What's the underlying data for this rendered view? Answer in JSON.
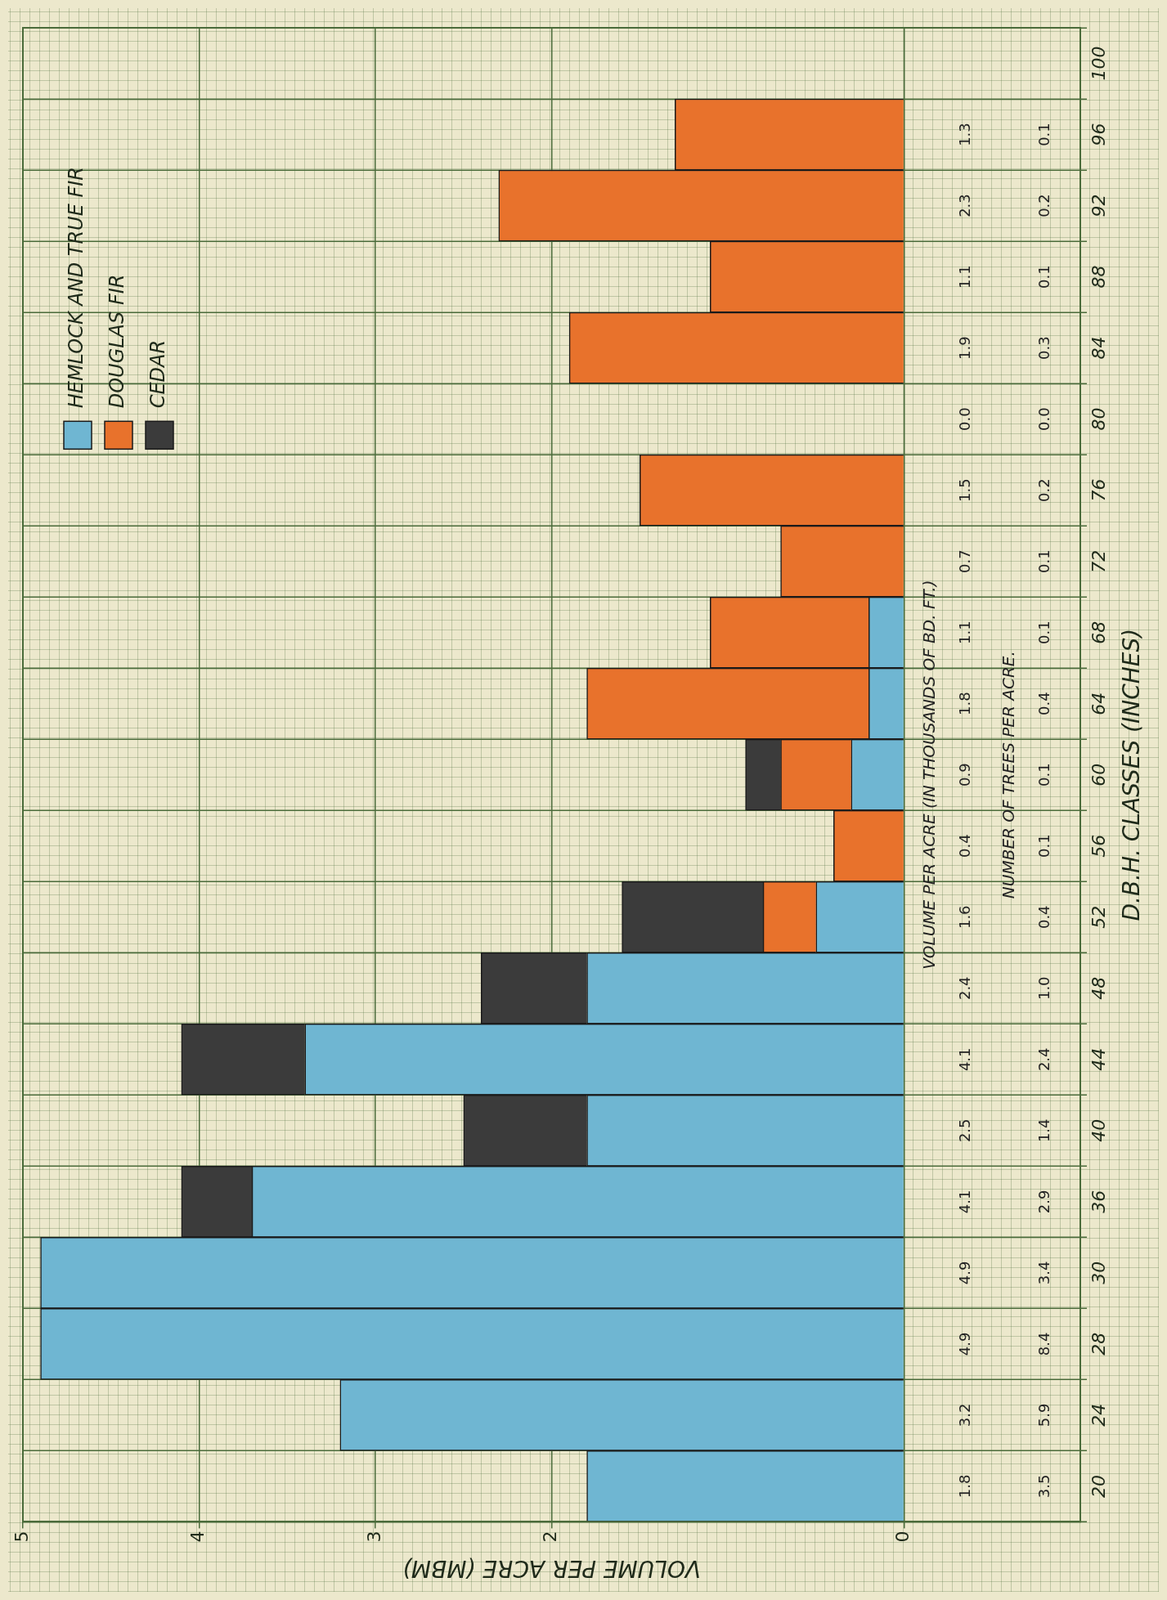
{
  "chart_data": {
    "type": "bar",
    "x_label": "D.B.H. CLASSES (INCHES)",
    "y_label": "VOLUME PER ACRE (MBM)",
    "categories": [
      20,
      24,
      28,
      30,
      36,
      40,
      44,
      48,
      52,
      56,
      60,
      64,
      68,
      72,
      76,
      80,
      84,
      88,
      92,
      96,
      100
    ],
    "series": [
      {
        "name": "HEMLOCK AND TRUE FIR",
        "color": "#6fb6d2",
        "values": [
          1.8,
          3.2,
          4.9,
          4.9,
          3.7,
          1.8,
          3.4,
          1.8,
          0.5,
          null,
          0.3,
          0.2,
          0.2,
          null,
          null,
          null,
          null,
          null,
          null,
          null,
          null
        ]
      },
      {
        "name": "DOUGLAS FIR",
        "color": "#e8722c",
        "values": [
          null,
          null,
          null,
          null,
          null,
          null,
          null,
          null,
          0.3,
          0.4,
          0.4,
          1.6,
          0.9,
          0.7,
          1.5,
          null,
          1.9,
          1.1,
          2.3,
          1.3,
          null
        ]
      },
      {
        "name": "CEDAR",
        "color": "#3b3b3b",
        "values": [
          null,
          null,
          null,
          null,
          0.4,
          0.7,
          0.7,
          0.6,
          0.8,
          null,
          0.2,
          null,
          null,
          null,
          null,
          null,
          null,
          null,
          null,
          null,
          null
        ]
      }
    ],
    "rows": [
      {
        "label": "VOLUME PER ACRE (IN THOUSANDS OF BD. FT.)",
        "values": [
          "1.8",
          "3.2",
          "4.9",
          "4.9",
          "4.1",
          "2.5",
          "4.1",
          "2.4",
          "1.6",
          "0.4",
          "0.9",
          "1.8",
          "1.1",
          "0.7",
          "1.5",
          "0.0",
          "1.9",
          "1.1",
          "2.3",
          "1.3",
          null
        ]
      },
      {
        "label": "NUMBER OF TREES PER ACRE.",
        "values": [
          "3.5",
          "5.9",
          "8.4",
          "3.4",
          "2.9",
          "1.4",
          "2.4",
          "1.0",
          "0.4",
          "0.1",
          "0.1",
          "0.4",
          "0.1",
          "0.1",
          "0.2",
          "0.0",
          "0.3",
          "0.1",
          "0.2",
          "0.1",
          null
        ]
      }
    ],
    "ylim": [
      -1,
      5
    ],
    "yticks": [
      0,
      2,
      3,
      4,
      5
    ],
    "stacked": true,
    "grid": true,
    "legend": "upper right"
  }
}
